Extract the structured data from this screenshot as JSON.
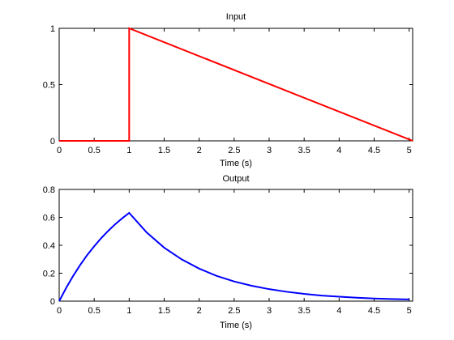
{
  "colors": {
    "background": "#ffffff",
    "axes": "#000000",
    "input_series": "#ff0000",
    "output_series": "#0000ff"
  },
  "chart_data": [
    {
      "type": "line",
      "title": "Input",
      "xlabel": "Time (s)",
      "ylabel": "",
      "xlim": [
        0,
        5.05
      ],
      "ylim": [
        0,
        1
      ],
      "xticks": [
        0,
        0.5,
        1,
        1.5,
        2,
        2.5,
        3,
        3.5,
        4,
        4.5,
        5
      ],
      "xtick_labels": [
        "0",
        "0.5",
        "1",
        "1.5",
        "2",
        "2.5",
        "3",
        "3.5",
        "4",
        "4.5",
        "5"
      ],
      "yticks": [
        0,
        0.5,
        1
      ],
      "ytick_labels": [
        "0",
        "0.5",
        "1"
      ],
      "grid": false,
      "series": [
        {
          "color": "#ff0000",
          "x": [
            0,
            1,
            1,
            5.05
          ],
          "y": [
            0,
            0,
            1,
            0
          ],
          "impulse_at": 1
        }
      ]
    },
    {
      "type": "line",
      "title": "Output",
      "xlabel": "Time (s)",
      "ylabel": "",
      "xlim": [
        0,
        5.05
      ],
      "ylim": [
        0,
        0.8
      ],
      "xticks": [
        0,
        0.5,
        1,
        1.5,
        2,
        2.5,
        3,
        3.5,
        4,
        4.5,
        5
      ],
      "xtick_labels": [
        "0",
        "0.5",
        "1",
        "1.5",
        "2",
        "2.5",
        "3",
        "3.5",
        "4",
        "4.5",
        "5"
      ],
      "yticks": [
        0,
        0.2,
        0.4,
        0.6,
        0.8
      ],
      "ytick_labels": [
        "0",
        "0.2",
        "0.4",
        "0.6",
        "0.8"
      ],
      "grid": false,
      "series": [
        {
          "color": "#0000ff",
          "x": [
            0,
            0.1,
            0.2,
            0.3,
            0.4,
            0.5,
            0.6,
            0.7,
            0.8,
            0.9,
            1.0,
            1.25,
            1.5,
            1.75,
            2.0,
            2.25,
            2.5,
            2.75,
            3.0,
            3.25,
            3.5,
            3.75,
            4.0,
            4.25,
            4.5,
            4.75,
            5.0
          ],
          "y": [
            0,
            0.095,
            0.181,
            0.259,
            0.33,
            0.393,
            0.451,
            0.503,
            0.551,
            0.593,
            0.632,
            0.492,
            0.383,
            0.299,
            0.233,
            0.181,
            0.141,
            0.11,
            0.086,
            0.067,
            0.052,
            0.04,
            0.032,
            0.025,
            0.019,
            0.015,
            0.012
          ]
        }
      ]
    }
  ]
}
